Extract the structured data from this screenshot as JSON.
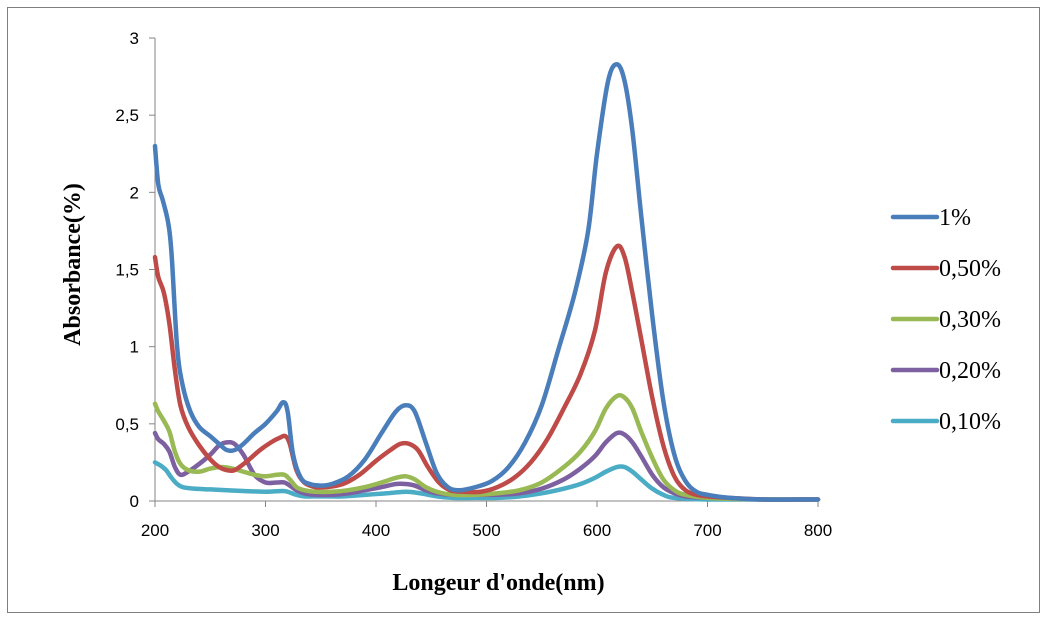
{
  "chart_data": {
    "type": "line",
    "xlabel": "Longeur d'onde(nm)",
    "ylabel": "Absorbance(%)",
    "xlim": [
      200,
      800
    ],
    "ylim": [
      0,
      3
    ],
    "x_ticks": [
      "200",
      "300",
      "400",
      "500",
      "600",
      "700",
      "800"
    ],
    "y_ticks": [
      "0",
      "0,5",
      "1",
      "1,5",
      "2",
      "2,5",
      "3"
    ],
    "grid": false,
    "legend_position": "right",
    "series": [
      {
        "name": "1%",
        "color": "#4a7ebb",
        "points": [
          [
            200,
            2.3
          ],
          [
            203,
            2.05
          ],
          [
            207,
            1.95
          ],
          [
            212,
            1.8
          ],
          [
            215,
            1.6
          ],
          [
            220,
            1.0
          ],
          [
            225,
            0.75
          ],
          [
            232,
            0.58
          ],
          [
            240,
            0.48
          ],
          [
            250,
            0.42
          ],
          [
            258,
            0.37
          ],
          [
            265,
            0.33
          ],
          [
            272,
            0.33
          ],
          [
            280,
            0.37
          ],
          [
            290,
            0.44
          ],
          [
            300,
            0.5
          ],
          [
            310,
            0.58
          ],
          [
            316,
            0.64
          ],
          [
            320,
            0.58
          ],
          [
            325,
            0.3
          ],
          [
            332,
            0.15
          ],
          [
            340,
            0.11
          ],
          [
            350,
            0.1
          ],
          [
            360,
            0.11
          ],
          [
            375,
            0.16
          ],
          [
            390,
            0.27
          ],
          [
            405,
            0.44
          ],
          [
            418,
            0.58
          ],
          [
            427,
            0.62
          ],
          [
            435,
            0.58
          ],
          [
            445,
            0.38
          ],
          [
            455,
            0.18
          ],
          [
            465,
            0.09
          ],
          [
            475,
            0.07
          ],
          [
            490,
            0.09
          ],
          [
            505,
            0.13
          ],
          [
            520,
            0.22
          ],
          [
            535,
            0.38
          ],
          [
            550,
            0.62
          ],
          [
            565,
            0.98
          ],
          [
            580,
            1.35
          ],
          [
            592,
            1.75
          ],
          [
            600,
            2.25
          ],
          [
            610,
            2.72
          ],
          [
            618,
            2.83
          ],
          [
            625,
            2.72
          ],
          [
            632,
            2.4
          ],
          [
            640,
            1.85
          ],
          [
            650,
            1.2
          ],
          [
            660,
            0.65
          ],
          [
            670,
            0.3
          ],
          [
            680,
            0.13
          ],
          [
            690,
            0.06
          ],
          [
            700,
            0.04
          ],
          [
            720,
            0.02
          ],
          [
            750,
            0.01
          ],
          [
            800,
            0.01
          ]
        ]
      },
      {
        "name": "0,50%",
        "color": "#be4b48",
        "points": [
          [
            200,
            1.58
          ],
          [
            203,
            1.45
          ],
          [
            208,
            1.35
          ],
          [
            213,
            1.15
          ],
          [
            218,
            0.85
          ],
          [
            223,
            0.62
          ],
          [
            230,
            0.48
          ],
          [
            240,
            0.36
          ],
          [
            250,
            0.27
          ],
          [
            258,
            0.22
          ],
          [
            265,
            0.2
          ],
          [
            272,
            0.2
          ],
          [
            282,
            0.25
          ],
          [
            295,
            0.33
          ],
          [
            305,
            0.38
          ],
          [
            313,
            0.41
          ],
          [
            318,
            0.42
          ],
          [
            322,
            0.37
          ],
          [
            328,
            0.2
          ],
          [
            335,
            0.12
          ],
          [
            345,
            0.09
          ],
          [
            355,
            0.09
          ],
          [
            370,
            0.11
          ],
          [
            385,
            0.17
          ],
          [
            400,
            0.26
          ],
          [
            413,
            0.33
          ],
          [
            422,
            0.37
          ],
          [
            430,
            0.37
          ],
          [
            438,
            0.33
          ],
          [
            447,
            0.22
          ],
          [
            457,
            0.12
          ],
          [
            467,
            0.07
          ],
          [
            480,
            0.06
          ],
          [
            495,
            0.06
          ],
          [
            510,
            0.09
          ],
          [
            525,
            0.15
          ],
          [
            540,
            0.25
          ],
          [
            555,
            0.4
          ],
          [
            570,
            0.6
          ],
          [
            585,
            0.82
          ],
          [
            598,
            1.1
          ],
          [
            608,
            1.48
          ],
          [
            618,
            1.65
          ],
          [
            625,
            1.58
          ],
          [
            632,
            1.35
          ],
          [
            640,
            1.05
          ],
          [
            650,
            0.67
          ],
          [
            660,
            0.36
          ],
          [
            670,
            0.16
          ],
          [
            680,
            0.07
          ],
          [
            690,
            0.04
          ],
          [
            700,
            0.03
          ],
          [
            720,
            0.02
          ],
          [
            750,
            0.01
          ],
          [
            800,
            0.01
          ]
        ]
      },
      {
        "name": "0,30%",
        "color": "#98b954",
        "points": [
          [
            200,
            0.63
          ],
          [
            203,
            0.58
          ],
          [
            208,
            0.52
          ],
          [
            213,
            0.45
          ],
          [
            218,
            0.32
          ],
          [
            223,
            0.24
          ],
          [
            230,
            0.2
          ],
          [
            240,
            0.19
          ],
          [
            250,
            0.21
          ],
          [
            260,
            0.22
          ],
          [
            270,
            0.21
          ],
          [
            280,
            0.19
          ],
          [
            290,
            0.17
          ],
          [
            300,
            0.16
          ],
          [
            310,
            0.17
          ],
          [
            317,
            0.17
          ],
          [
            322,
            0.14
          ],
          [
            328,
            0.09
          ],
          [
            335,
            0.07
          ],
          [
            345,
            0.06
          ],
          [
            360,
            0.06
          ],
          [
            375,
            0.07
          ],
          [
            390,
            0.09
          ],
          [
            405,
            0.12
          ],
          [
            418,
            0.15
          ],
          [
            427,
            0.16
          ],
          [
            435,
            0.14
          ],
          [
            445,
            0.09
          ],
          [
            455,
            0.06
          ],
          [
            470,
            0.04
          ],
          [
            490,
            0.04
          ],
          [
            510,
            0.05
          ],
          [
            530,
            0.07
          ],
          [
            550,
            0.12
          ],
          [
            570,
            0.22
          ],
          [
            585,
            0.32
          ],
          [
            598,
            0.45
          ],
          [
            608,
            0.6
          ],
          [
            618,
            0.68
          ],
          [
            625,
            0.67
          ],
          [
            632,
            0.6
          ],
          [
            640,
            0.45
          ],
          [
            650,
            0.28
          ],
          [
            660,
            0.14
          ],
          [
            670,
            0.07
          ],
          [
            680,
            0.04
          ],
          [
            700,
            0.02
          ],
          [
            750,
            0.01
          ],
          [
            800,
            0.01
          ]
        ]
      },
      {
        "name": "0,20%",
        "color": "#7d60a0",
        "points": [
          [
            200,
            0.44
          ],
          [
            203,
            0.4
          ],
          [
            208,
            0.37
          ],
          [
            213,
            0.32
          ],
          [
            218,
            0.22
          ],
          [
            223,
            0.17
          ],
          [
            230,
            0.19
          ],
          [
            240,
            0.24
          ],
          [
            250,
            0.3
          ],
          [
            258,
            0.36
          ],
          [
            265,
            0.38
          ],
          [
            272,
            0.37
          ],
          [
            280,
            0.3
          ],
          [
            290,
            0.17
          ],
          [
            300,
            0.12
          ],
          [
            310,
            0.12
          ],
          [
            317,
            0.12
          ],
          [
            322,
            0.1
          ],
          [
            328,
            0.07
          ],
          [
            335,
            0.05
          ],
          [
            345,
            0.04
          ],
          [
            360,
            0.04
          ],
          [
            375,
            0.05
          ],
          [
            390,
            0.07
          ],
          [
            405,
            0.09
          ],
          [
            418,
            0.11
          ],
          [
            427,
            0.11
          ],
          [
            435,
            0.1
          ],
          [
            445,
            0.07
          ],
          [
            455,
            0.05
          ],
          [
            470,
            0.04
          ],
          [
            490,
            0.04
          ],
          [
            510,
            0.04
          ],
          [
            530,
            0.05
          ],
          [
            550,
            0.08
          ],
          [
            570,
            0.14
          ],
          [
            585,
            0.21
          ],
          [
            598,
            0.29
          ],
          [
            608,
            0.38
          ],
          [
            618,
            0.44
          ],
          [
            625,
            0.43
          ],
          [
            632,
            0.38
          ],
          [
            640,
            0.29
          ],
          [
            650,
            0.17
          ],
          [
            660,
            0.09
          ],
          [
            670,
            0.05
          ],
          [
            680,
            0.03
          ],
          [
            700,
            0.02
          ],
          [
            750,
            0.01
          ],
          [
            800,
            0.01
          ]
        ]
      },
      {
        "name": "0,10%",
        "color": "#4bacc6",
        "points": [
          [
            200,
            0.25
          ],
          [
            205,
            0.23
          ],
          [
            210,
            0.2
          ],
          [
            215,
            0.15
          ],
          [
            220,
            0.11
          ],
          [
            225,
            0.09
          ],
          [
            235,
            0.08
          ],
          [
            250,
            0.075
          ],
          [
            265,
            0.07
          ],
          [
            280,
            0.065
          ],
          [
            300,
            0.06
          ],
          [
            315,
            0.065
          ],
          [
            320,
            0.06
          ],
          [
            328,
            0.04
          ],
          [
            335,
            0.03
          ],
          [
            350,
            0.03
          ],
          [
            370,
            0.03
          ],
          [
            390,
            0.04
          ],
          [
            410,
            0.05
          ],
          [
            427,
            0.06
          ],
          [
            440,
            0.05
          ],
          [
            455,
            0.03
          ],
          [
            470,
            0.02
          ],
          [
            490,
            0.02
          ],
          [
            510,
            0.02
          ],
          [
            530,
            0.03
          ],
          [
            550,
            0.05
          ],
          [
            570,
            0.08
          ],
          [
            585,
            0.11
          ],
          [
            598,
            0.15
          ],
          [
            608,
            0.19
          ],
          [
            618,
            0.22
          ],
          [
            625,
            0.22
          ],
          [
            632,
            0.19
          ],
          [
            640,
            0.14
          ],
          [
            650,
            0.08
          ],
          [
            660,
            0.04
          ],
          [
            670,
            0.02
          ],
          [
            700,
            0.01
          ],
          [
            750,
            0.01
          ],
          [
            800,
            0.01
          ]
        ]
      }
    ]
  }
}
